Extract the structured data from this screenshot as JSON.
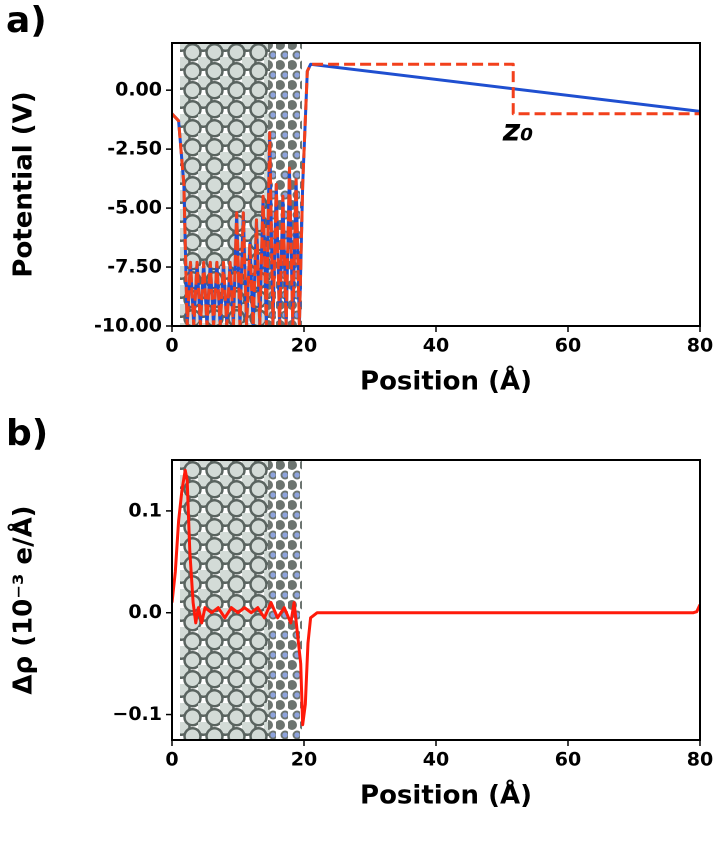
{
  "chart_data": [
    {
      "type": "line",
      "panel_label": "a)",
      "ylabel": "Potential (V)",
      "xlabel": "Position (Å)",
      "xlim": [
        0,
        80
      ],
      "xticks": [
        0,
        20,
        40,
        60,
        80
      ],
      "ylim": [
        -10,
        2
      ],
      "yticks": [
        {
          "value": 0,
          "label": "0.00"
        },
        {
          "value": -2.5,
          "label": "-2.50"
        },
        {
          "value": -5,
          "label": "-5.00"
        },
        {
          "value": -7.5,
          "label": "-7.50"
        },
        {
          "value": -10,
          "label": "-10.00"
        }
      ],
      "annotations": [
        {
          "text": "z₀"
        }
      ],
      "series": [
        {
          "color": "#1f4fd0",
          "line_style": "solid",
          "x": [
            0,
            1,
            1.8,
            2.3,
            2.8,
            3.3,
            3.8,
            4.3,
            4.8,
            5.3,
            5.8,
            6.3,
            6.8,
            7.3,
            7.8,
            8.3,
            8.8,
            9.3,
            9.8,
            10.3,
            10.8,
            11.3,
            11.8,
            12.3,
            12.8,
            13.3,
            13.8,
            14.3,
            14.8,
            15.3,
            15.8,
            16.3,
            16.8,
            17.3,
            17.8,
            18.3,
            18.8,
            19.3,
            19.8,
            20.5,
            21,
            80
          ],
          "values": [
            -1.0,
            -1.3,
            -4,
            -10,
            -7.3,
            -10,
            -7.3,
            -10,
            -7.3,
            -10,
            -7.3,
            -10,
            -7.3,
            -10,
            -7.3,
            -10,
            -7.3,
            -10,
            -5.2,
            -10,
            -5.2,
            -10,
            -6.5,
            -10,
            -5.5,
            -10,
            -4.5,
            -10,
            -1.8,
            -10,
            -4,
            -10,
            -4.5,
            -10,
            -3.3,
            -10,
            -3.8,
            -10,
            -4,
            0.8,
            1.1,
            -0.9
          ]
        },
        {
          "color": "#f2401c",
          "line_style": "dashed",
          "x": [
            0,
            1,
            1.8,
            2.3,
            2.8,
            3.3,
            3.8,
            4.3,
            4.8,
            5.3,
            5.8,
            6.3,
            6.8,
            7.3,
            7.8,
            8.3,
            8.8,
            9.3,
            9.8,
            10.3,
            10.8,
            11.3,
            11.8,
            12.3,
            12.8,
            13.3,
            13.8,
            14.3,
            14.8,
            15.3,
            15.8,
            16.3,
            16.8,
            17.3,
            17.8,
            18.3,
            18.8,
            19.3,
            19.8,
            20.5,
            21,
            51.7,
            51.7,
            80
          ],
          "values": [
            -1.0,
            -1.3,
            -4,
            -10,
            -7.3,
            -10,
            -7.3,
            -10,
            -7.3,
            -10,
            -7.3,
            -10,
            -7.3,
            -10,
            -7.3,
            -10,
            -7.3,
            -10,
            -5.2,
            -10,
            -5.2,
            -10,
            -6.5,
            -10,
            -5.5,
            -10,
            -4.5,
            -10,
            -1.8,
            -10,
            -4,
            -10,
            -4.5,
            -10,
            -3.3,
            -10,
            -3.8,
            -10,
            -4,
            0.8,
            1.1,
            1.1,
            -1.0,
            -1.0
          ]
        }
      ]
    },
    {
      "type": "line",
      "panel_label": "b)",
      "ylabel": "Δρ (10⁻³ e/Å)",
      "xlabel": "Position (Å)",
      "xlim": [
        0,
        80
      ],
      "xticks": [
        0,
        20,
        40,
        60,
        80
      ],
      "ylim": [
        -0.125,
        0.15
      ],
      "yticks": [
        0.1,
        {
          "value": 0,
          "label": "0.0"
        },
        {
          "value": -0.1,
          "label": "−0.1"
        }
      ],
      "series": [
        {
          "color": "#ff1a0a",
          "line_style": "solid",
          "x": [
            0,
            0.5,
            1,
            1.5,
            2,
            2.3,
            2.7,
            3.2,
            3.6,
            4,
            4.5,
            5,
            6,
            7,
            8,
            9,
            10,
            11,
            12,
            13,
            14,
            15,
            16,
            17,
            18,
            18.5,
            19,
            19.5,
            19.8,
            20.2,
            20.6,
            21,
            22,
            30,
            50,
            70,
            79,
            79.5,
            80
          ],
          "values": [
            0.01,
            0.04,
            0.09,
            0.12,
            0.14,
            0.13,
            0.06,
            0.01,
            -0.01,
            0.005,
            -0.01,
            0.005,
            0,
            0.005,
            -0.005,
            0.005,
            0,
            0.005,
            0,
            0.005,
            -0.005,
            0.01,
            -0.005,
            0.005,
            -0.01,
            0.01,
            -0.02,
            -0.05,
            -0.11,
            -0.09,
            -0.03,
            -0.005,
            0,
            0,
            0,
            0,
            0,
            0.001,
            0.008
          ]
        }
      ]
    }
  ]
}
